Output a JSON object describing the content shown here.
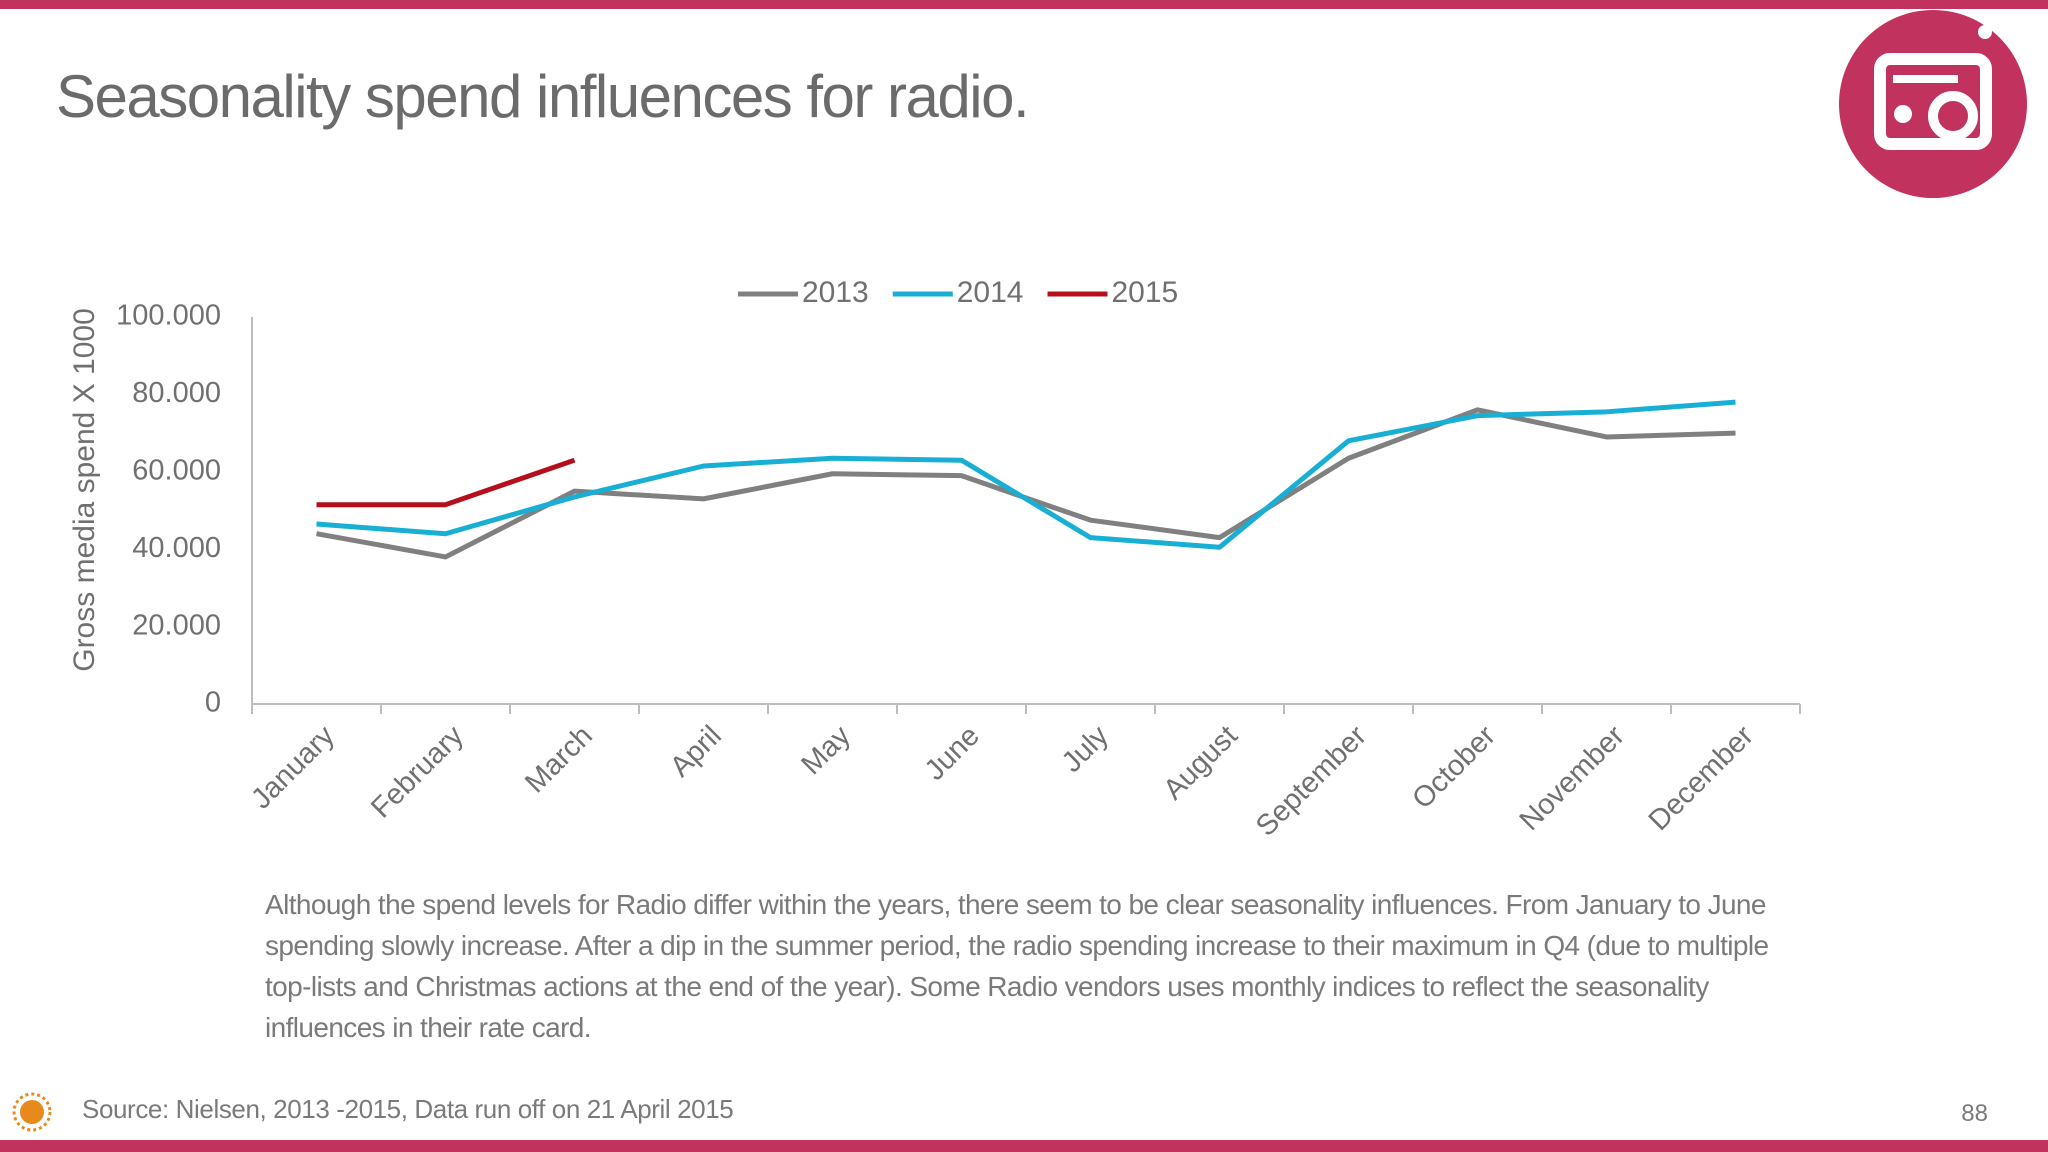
{
  "chart_data": {
    "type": "line",
    "title": "Seasonality spend influences for radio.",
    "y_label": "Gross media spend X 1000",
    "categories": [
      "January",
      "February",
      "March",
      "April",
      "May",
      "June",
      "July",
      "August",
      "September",
      "October",
      "November",
      "December"
    ],
    "series": [
      {
        "name": "2013",
        "color": "#808080",
        "values": [
          44000,
          38000,
          55000,
          53000,
          59500,
          59000,
          47500,
          43000,
          63500,
          76000,
          69000,
          70000
        ]
      },
      {
        "name": "2014",
        "color": "#19afd4",
        "values": [
          46500,
          44000,
          53500,
          61500,
          63500,
          63000,
          43000,
          40500,
          68000,
          74500,
          75500,
          78000
        ]
      },
      {
        "name": "2015",
        "color": "#b50f1b",
        "values": [
          51500,
          51500,
          63000,
          null,
          null,
          null,
          null,
          null,
          null,
          null,
          null,
          null
        ]
      }
    ],
    "ylim": [
      0,
      100000
    ],
    "yticks": [
      0,
      {
        "value": 20000,
        "label": "20.000"
      },
      {
        "value": 40000,
        "label": "40.000"
      },
      {
        "value": 60000,
        "label": "60.000"
      },
      {
        "value": 80000,
        "label": "80.000"
      },
      {
        "value": 100000,
        "label": "100.000"
      }
    ],
    "grid": false,
    "legend": "top"
  },
  "description": "Although the spend levels for Radio differ within the years, there seem to be clear seasonality influences. From January to June spending slowly increase. After a dip in the summer period, the radio spending increase to their maximum in Q4 (due to multiple top-lists and Christmas actions at the end of the year). Some Radio vendors uses monthly indices to reflect the seasonality influences in their rate card.",
  "source": "Source: Nielsen, 2013 -2015, Data run off on 21 April 2015",
  "page_number": "88"
}
